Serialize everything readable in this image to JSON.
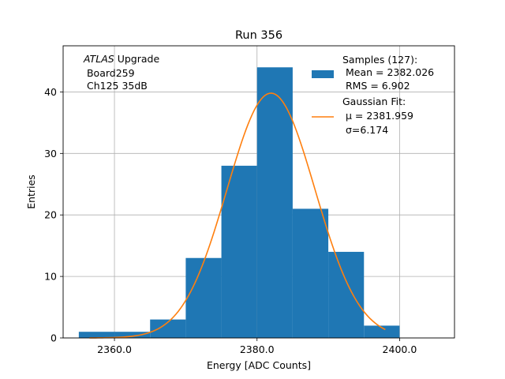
{
  "chart_data": {
    "type": "bar",
    "title": "Run 356",
    "xlabel": "Energy [ADC Counts]",
    "ylabel": "Entries",
    "xlim": [
      2352.8,
      2407.7
    ],
    "ylim": [
      0,
      47.5
    ],
    "xticks": [
      2360,
      2380,
      2400
    ],
    "xtick_labels": [
      "2360.0",
      "2380.0",
      "2400.0"
    ],
    "yticks": [
      0,
      10,
      20,
      30,
      40
    ],
    "grid": true,
    "bins": [
      {
        "x0": 2355,
        "x1": 2360,
        "value": 1
      },
      {
        "x0": 2360,
        "x1": 2365,
        "value": 1
      },
      {
        "x0": 2365,
        "x1": 2370,
        "value": 3
      },
      {
        "x0": 2370,
        "x1": 2375,
        "value": 13
      },
      {
        "x0": 2375,
        "x1": 2380,
        "value": 28
      },
      {
        "x0": 2380,
        "x1": 2385,
        "value": 44
      },
      {
        "x0": 2385,
        "x1": 2390,
        "value": 21
      },
      {
        "x0": 2390,
        "x1": 2395,
        "value": 14
      },
      {
        "x0": 2395,
        "x1": 2400,
        "value": 2
      }
    ],
    "fit": {
      "type": "gaussian",
      "mu": 2381.959,
      "sigma": 6.174,
      "peak": 39.8,
      "x_range": [
        2356.5,
        2398.0
      ]
    },
    "annotation": {
      "italic": "ATLAS",
      "rest": " Upgrade",
      "lines": [
        " Board259",
        " Ch125 35dB"
      ]
    },
    "legend": {
      "placement": "top-right",
      "entries": [
        {
          "kind": "patch",
          "lines": [
            "Samples (127):",
            " Mean = 2382.026",
            " RMS = 6.902"
          ]
        },
        {
          "kind": "line",
          "lines": [
            "Gaussian Fit:",
            " μ = 2381.959",
            " σ=6.174"
          ]
        }
      ]
    },
    "colors": {
      "bars": "#1f77b4",
      "fit": "#ff7f0e",
      "grid": "#b0b0b0"
    }
  }
}
